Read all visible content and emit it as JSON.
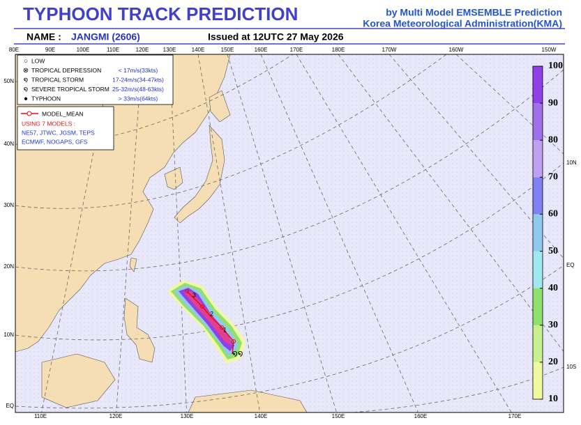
{
  "header": {
    "title": "TYPHOON TRACK PREDICTION",
    "credit_1": "by Multi Model EMSEMBLE Prediction",
    "credit_2": "Korea Meteorological Administration(KMA)",
    "name_label": "NAME :",
    "name": "JANGMI (2606)",
    "issued": "Issued at  12UTC 27 May 2026"
  },
  "map": {
    "top_lon": [
      "80E",
      "90E",
      "100E",
      "110E",
      "120E",
      "130E",
      "140E",
      "150E",
      "160E",
      "170E",
      "180E",
      "170W",
      "160W",
      "150W"
    ],
    "bottom_lon": [
      "110E",
      "120E",
      "130E",
      "140E",
      "150E",
      "160E",
      "170E"
    ],
    "left_lat": [
      "50N",
      "40N",
      "30N",
      "20N",
      "10N",
      "EQ"
    ],
    "right_lat": [
      "10N",
      "EQ",
      "10S"
    ]
  },
  "legend": {
    "intensity": [
      {
        "name": "LOW"
      },
      {
        "name": "TROPICAL DEPRESSION",
        "speed": "< 17m/s(33kts)"
      },
      {
        "name": "TROPICAL STORM",
        "speed": "17-24m/s(34-47kts)"
      },
      {
        "name": "SEVERE TROPICAL STORM",
        "speed": "25-32m/s(48-63kts)"
      },
      {
        "name": "TYPHOON",
        "speed": "> 33m/s(64kts)"
      }
    ],
    "mean": "MODEL_MEAN",
    "using": "USING 7 MODELS :",
    "list_1": "NE57, JTWC, JGSM, TEPS",
    "list_2": "ECMWF, NOGAPS, GFS"
  },
  "track": {
    "day_labels": [
      "1",
      "2",
      "3"
    ]
  },
  "colorbar": {
    "ticks": [
      10,
      20,
      30,
      40,
      50,
      60,
      70,
      80,
      90,
      100
    ],
    "colors": [
      "#f0f8a0",
      "#c8f090",
      "#90e070",
      "#a0e8f0",
      "#90c8f0",
      "#8080f0",
      "#c0a0f0",
      "#a070e8",
      "#9040e8"
    ]
  }
}
